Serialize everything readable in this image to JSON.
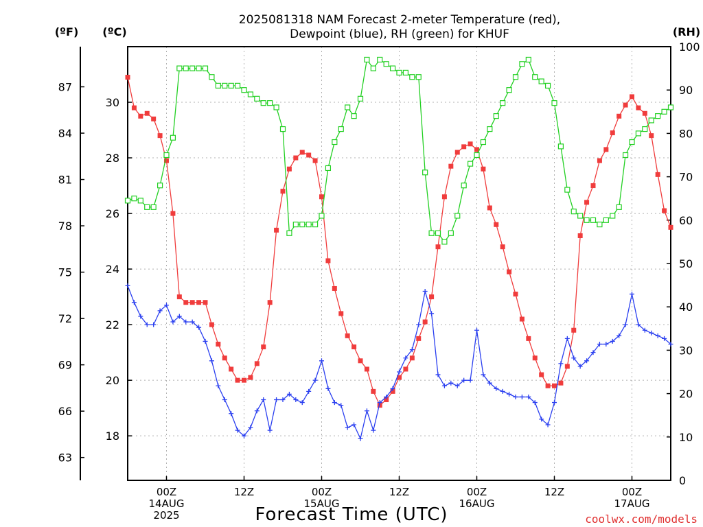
{
  "chart_data": {
    "type": "line",
    "title_lines": [
      "2025081318 NAM Forecast 2-meter Temperature (red),",
      "Dewpoint (blue), RH (green) for KHUF"
    ],
    "xlabel": "Forecast Time (UTC)",
    "credit": "coolwx.com/models",
    "units": {
      "fahrenheit": "(ºF)",
      "celsius": "(ºC)",
      "rh": "(RH)"
    },
    "x_ticks": [
      {
        "hour": 6,
        "lines": [
          "00Z",
          "14AUG",
          "2025"
        ]
      },
      {
        "hour": 18,
        "lines": [
          "12Z"
        ]
      },
      {
        "hour": 30,
        "lines": [
          "00Z",
          "15AUG"
        ]
      },
      {
        "hour": 42,
        "lines": [
          "12Z"
        ]
      },
      {
        "hour": 54,
        "lines": [
          "00Z",
          "16AUG"
        ]
      },
      {
        "hour": 66,
        "lines": [
          "12Z"
        ]
      },
      {
        "hour": 78,
        "lines": [
          "00Z",
          "17AUG"
        ]
      }
    ],
    "xlim": [
      0,
      84
    ],
    "celsius_axis": {
      "ylim": [
        16.4,
        32
      ],
      "ticks": [
        18,
        20,
        22,
        24,
        26,
        28,
        30
      ]
    },
    "fahrenheit_axis": {
      "ticks": [
        63,
        66,
        69,
        72,
        75,
        78,
        81,
        84,
        87
      ]
    },
    "rh_axis": {
      "ylim": [
        0,
        100
      ],
      "ticks": [
        0,
        10,
        20,
        30,
        40,
        50,
        60,
        70,
        80,
        90,
        100
      ]
    },
    "grid": true,
    "series": [
      {
        "key": "temperature",
        "axis": "celsius",
        "color": "#f03c3c",
        "marker": "filled-square",
        "x": [
          0,
          1,
          2,
          3,
          4,
          5,
          6,
          7,
          8,
          9,
          10,
          11,
          12,
          13,
          14,
          15,
          16,
          17,
          18,
          19,
          20,
          21,
          22,
          23,
          24,
          25,
          26,
          27,
          28,
          29,
          30,
          31,
          32,
          33,
          34,
          35,
          36,
          37,
          38,
          39,
          40,
          41,
          42,
          43,
          44,
          45,
          46,
          47,
          48,
          49,
          50,
          51,
          52,
          53,
          54,
          55,
          56,
          57,
          58,
          59,
          60,
          61,
          62,
          63,
          64,
          65,
          66,
          67,
          68,
          69,
          70,
          71,
          72,
          73,
          74,
          75,
          76,
          77,
          78,
          79,
          80,
          81,
          82,
          83,
          84
        ],
        "values": [
          30.9,
          29.8,
          29.5,
          29.6,
          29.4,
          28.8,
          27.9,
          26.0,
          23.0,
          22.8,
          22.8,
          22.8,
          22.8,
          22.0,
          21.3,
          20.8,
          20.4,
          20.0,
          20.0,
          20.1,
          20.6,
          21.2,
          22.8,
          25.4,
          26.8,
          27.6,
          28.0,
          28.2,
          28.1,
          27.9,
          26.6,
          24.3,
          23.3,
          22.4,
          21.6,
          21.2,
          20.7,
          20.4,
          19.6,
          19.1,
          19.3,
          19.6,
          20.1,
          20.4,
          20.8,
          21.5,
          22.1,
          23.0,
          24.8,
          26.6,
          27.7,
          28.2,
          28.4,
          28.5,
          28.3,
          27.6,
          26.2,
          25.6,
          24.8,
          23.9,
          23.1,
          22.2,
          21.5,
          20.8,
          20.2,
          19.8,
          19.8,
          19.9,
          20.5,
          21.8,
          25.2,
          26.4,
          27.0,
          27.9,
          28.3,
          28.9,
          29.5,
          29.9,
          30.2,
          29.8,
          29.6,
          28.8,
          27.4,
          26.1,
          25.5
        ]
      },
      {
        "key": "dewpoint",
        "axis": "celsius",
        "color": "#2a3ff0",
        "marker": "plus",
        "x": [
          0,
          1,
          2,
          3,
          4,
          5,
          6,
          7,
          8,
          9,
          10,
          11,
          12,
          13,
          14,
          15,
          16,
          17,
          18,
          19,
          20,
          21,
          22,
          23,
          24,
          25,
          26,
          27,
          28,
          29,
          30,
          31,
          32,
          33,
          34,
          35,
          36,
          37,
          38,
          39,
          40,
          41,
          42,
          43,
          44,
          45,
          46,
          47,
          48,
          49,
          50,
          51,
          52,
          53,
          54,
          55,
          56,
          57,
          58,
          59,
          60,
          61,
          62,
          63,
          64,
          65,
          66,
          67,
          68,
          69,
          70,
          71,
          72,
          73,
          74,
          75,
          76,
          77,
          78,
          79,
          80,
          81,
          82,
          83,
          84
        ],
        "values": [
          23.4,
          22.8,
          22.3,
          22.0,
          22.0,
          22.5,
          22.7,
          22.1,
          22.3,
          22.1,
          22.1,
          21.9,
          21.4,
          20.7,
          19.8,
          19.3,
          18.8,
          18.2,
          18.0,
          18.3,
          18.9,
          19.3,
          18.2,
          19.3,
          19.3,
          19.5,
          19.3,
          19.2,
          19.6,
          20.0,
          20.7,
          19.7,
          19.2,
          19.1,
          18.3,
          18.4,
          17.9,
          18.9,
          18.2,
          19.2,
          19.4,
          19.7,
          20.3,
          20.8,
          21.1,
          22.0,
          23.2,
          22.4,
          20.2,
          19.8,
          19.9,
          19.8,
          20.0,
          20.0,
          21.8,
          20.2,
          19.9,
          19.7,
          19.6,
          19.5,
          19.4,
          19.4,
          19.4,
          19.2,
          18.6,
          18.4,
          19.2,
          20.6,
          21.5,
          20.8,
          20.5,
          20.7,
          21.0,
          21.3,
          21.3,
          21.4,
          21.6,
          22.0,
          23.1,
          22.0,
          21.8,
          21.7,
          21.6,
          21.5,
          21.3
        ]
      },
      {
        "key": "rh",
        "axis": "rh",
        "color": "#22d022",
        "marker": "open-square",
        "x": [
          0,
          1,
          2,
          3,
          4,
          5,
          6,
          7,
          8,
          9,
          10,
          11,
          12,
          13,
          14,
          15,
          16,
          17,
          18,
          19,
          20,
          21,
          22,
          23,
          24,
          25,
          26,
          27,
          28,
          29,
          30,
          31,
          32,
          33,
          34,
          35,
          36,
          37,
          38,
          39,
          40,
          41,
          42,
          43,
          44,
          45,
          46,
          47,
          48,
          49,
          50,
          51,
          52,
          53,
          54,
          55,
          56,
          57,
          58,
          59,
          60,
          61,
          62,
          63,
          64,
          65,
          66,
          67,
          68,
          69,
          70,
          71,
          72,
          73,
          74,
          75,
          76,
          77,
          78,
          79,
          80,
          81,
          82,
          83,
          84
        ],
        "values": [
          64.5,
          65,
          64.5,
          63,
          63,
          68,
          75,
          79,
          95,
          95,
          95,
          95,
          95,
          93,
          91,
          91,
          91,
          91,
          90,
          89,
          88,
          87,
          87,
          86,
          81,
          57,
          59,
          59,
          59,
          59,
          61,
          72,
          78,
          81,
          86,
          84,
          88,
          97,
          95,
          97,
          96,
          95,
          94,
          94,
          93,
          93,
          71,
          57,
          57,
          55,
          57,
          61,
          68,
          73,
          75,
          78,
          81,
          84,
          87,
          90,
          93,
          96,
          97,
          93,
          92,
          91,
          87,
          77,
          67,
          62,
          61,
          60,
          60,
          59,
          60,
          61,
          63,
          75,
          78,
          80,
          81,
          83,
          84,
          85,
          86
        ]
      }
    ]
  }
}
